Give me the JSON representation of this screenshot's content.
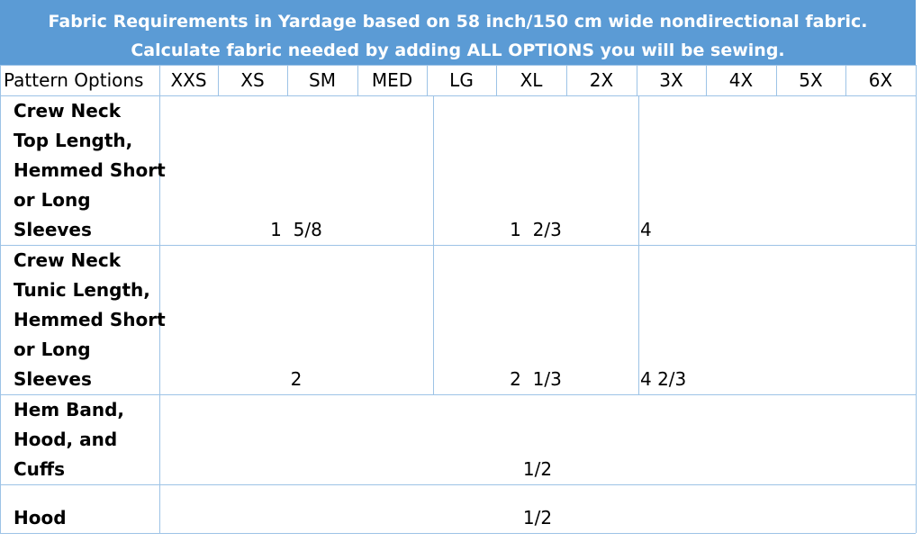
{
  "header": {
    "lines": [
      "Fabric Requirements in Yardage based on 58 inch/150 cm wide nondirectional fabric.",
      "Calculate fabric needed by adding ALL OPTIONS you will be sewing."
    ]
  },
  "table": {
    "columns": [
      "Pattern Options",
      "XXS",
      "XS",
      "SM",
      "MED",
      "LG",
      "XL",
      "2X",
      "3X",
      "4X",
      "5X",
      "6X"
    ],
    "rows": [
      {
        "label": [
          "Crew Neck",
          "Top Length,",
          "Hemmed Short",
          "or Long",
          "Sleeves"
        ],
        "values": [
          "1  5/8",
          "1  2/3",
          "4"
        ]
      },
      {
        "label": [
          "Crew Neck",
          "Tunic Length,",
          "Hemmed Short",
          "or Long",
          "Sleeves"
        ],
        "values": [
          "2",
          "2  1/3",
          "4 2/3"
        ]
      },
      {
        "label": [
          "Hem Band,",
          "Hood, and",
          "Cuffs"
        ],
        "values": [
          "1/2"
        ]
      },
      {
        "label": [
          "Hood"
        ],
        "values": [
          "1/2"
        ]
      }
    ]
  }
}
